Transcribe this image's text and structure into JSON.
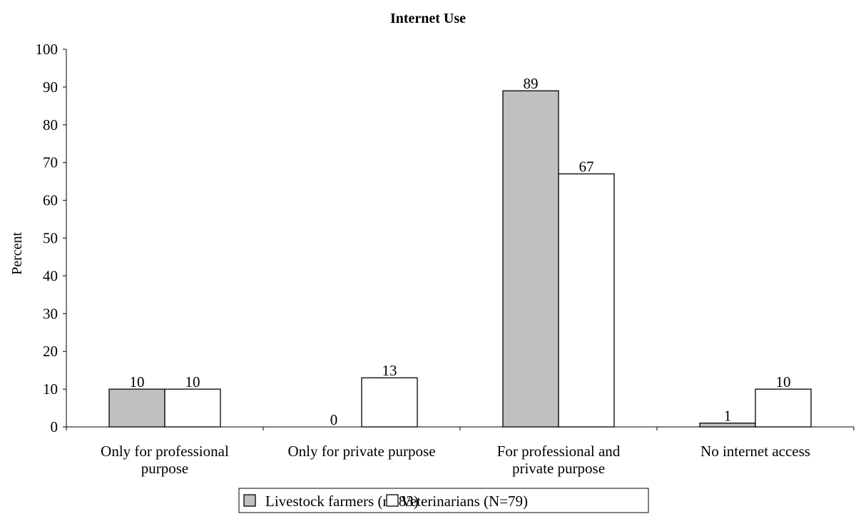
{
  "chart_data": {
    "type": "bar",
    "title": "Internet Use",
    "ylabel": "Percent",
    "xlabel": "",
    "ylim": [
      0,
      100
    ],
    "yticks": [
      0,
      10,
      20,
      30,
      40,
      50,
      60,
      70,
      80,
      90,
      100
    ],
    "categories": [
      [
        "Only for professional",
        "purpose"
      ],
      [
        "Only for private purpose"
      ],
      [
        "For professional and",
        "private purpose"
      ],
      [
        "No internet access"
      ]
    ],
    "series": [
      {
        "name": "Livestock farmers (n=83)",
        "values": [
          10,
          0,
          89,
          1
        ],
        "color": "#c0c0c0"
      },
      {
        "name": "Veterinarians (N=79)",
        "values": [
          10,
          13,
          67,
          10
        ],
        "color": "#ffffff"
      }
    ],
    "legend_position": "bottom",
    "grid": false
  }
}
